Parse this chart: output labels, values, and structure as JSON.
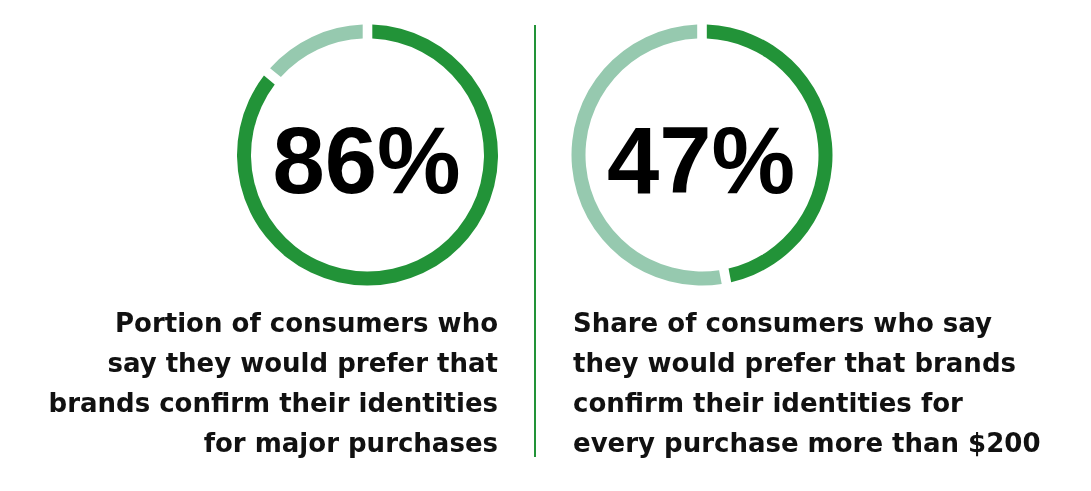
{
  "chart_data": [
    {
      "type": "donut",
      "title": "Portion of consumers who\nsay they would prefer that\nbrands confirm their identities\nfor major purchases",
      "categories": [
        null,
        null
      ],
      "values": [
        86,
        14
      ],
      "colors": [
        "#229338",
        "#96c9af"
      ],
      "value_labels": [
        "86%",
        null
      ]
    },
    {
      "type": "donut",
      "title": "Share of consumers who say\nthey would prefer that brands\nconfirm their identities for\nevery purchase more than $200",
      "categories": [
        null,
        null
      ],
      "values": [
        47,
        53
      ],
      "colors": [
        "#229338",
        "#96c9af"
      ],
      "value_labels": [
        "47%",
        null
      ]
    }
  ]
}
